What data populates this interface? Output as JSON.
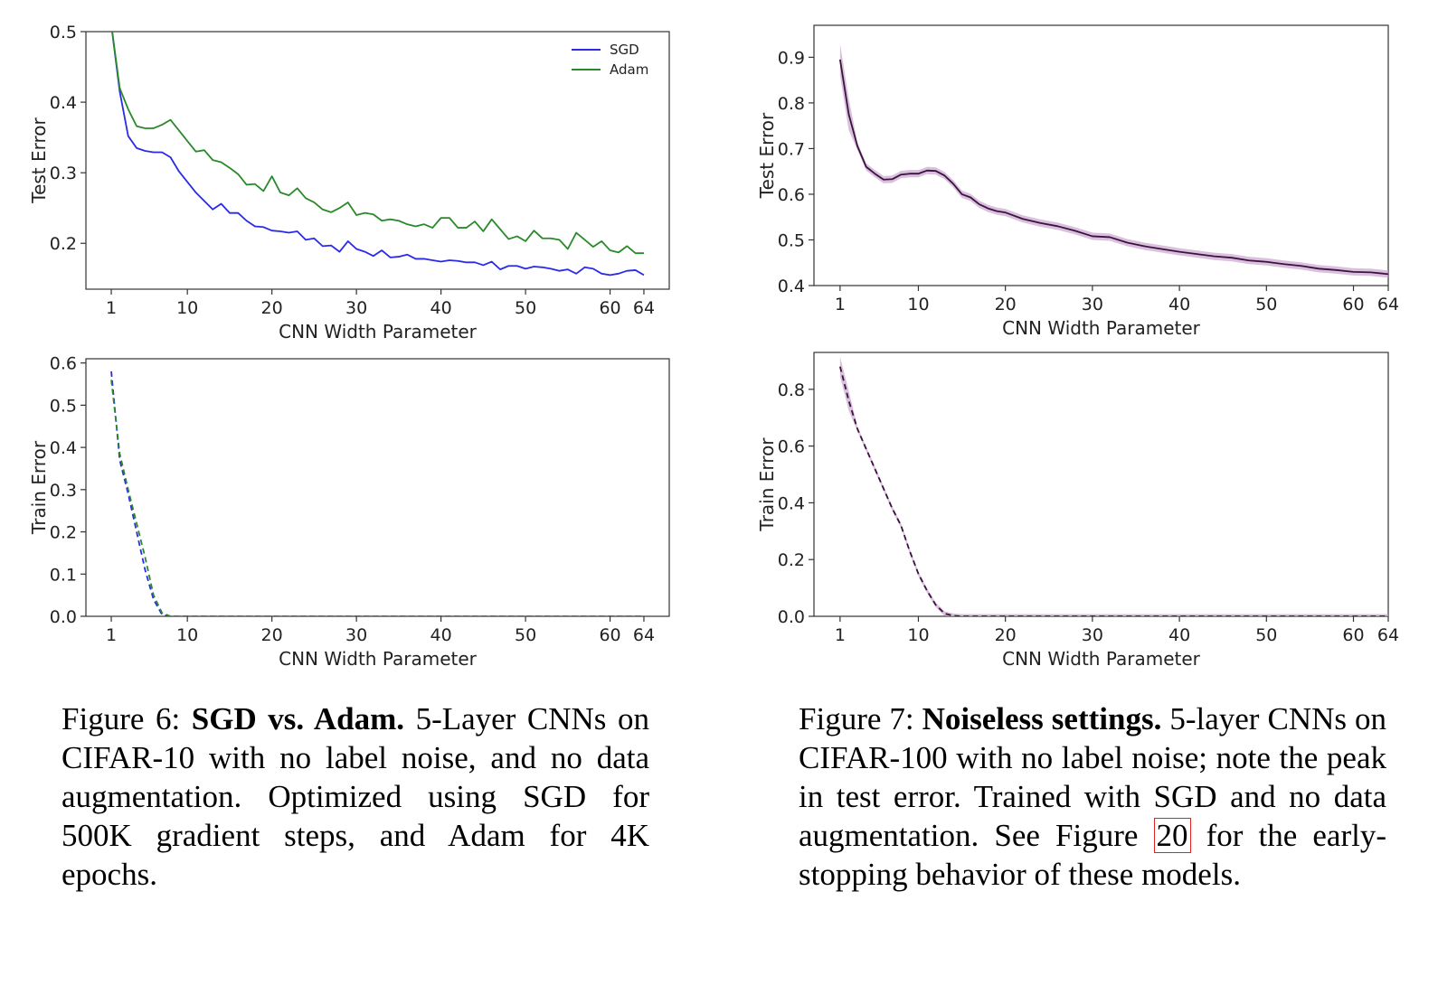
{
  "chart_data": [
    {
      "id": "fig6-test",
      "type": "line",
      "ylabel": "Test Error",
      "xlabel": "CNN Width Parameter",
      "xlim": [
        -2,
        67
      ],
      "ylim": [
        0.135,
        0.5
      ],
      "xticks": [
        1,
        10,
        20,
        30,
        40,
        50,
        60,
        64
      ],
      "yticks": [
        0.2,
        0.3,
        0.4,
        0.5
      ],
      "ytick_labels": [
        "0.2",
        "0.3",
        "0.4",
        "0.5"
      ],
      "legend": "top-right",
      "series": [
        {
          "name": "SGD",
          "color": "#2a2ae8",
          "style": "solid",
          "x": [
            1,
            2,
            3,
            4,
            5,
            6,
            7,
            8,
            9,
            10,
            11,
            12,
            13,
            14,
            15,
            16,
            17,
            18,
            19,
            20,
            21,
            22,
            23,
            24,
            25,
            26,
            27,
            28,
            29,
            30,
            31,
            32,
            33,
            34,
            35,
            36,
            37,
            38,
            39,
            40,
            41,
            42,
            43,
            44,
            45,
            46,
            47,
            48,
            49,
            50,
            51,
            52,
            53,
            54,
            55,
            56,
            57,
            58,
            59,
            60,
            61,
            62,
            63,
            64
          ],
          "y": [
            0.51,
            0.415,
            0.352,
            0.335,
            0.331,
            0.329,
            0.329,
            0.322,
            0.302,
            0.287,
            0.272,
            0.26,
            0.248,
            0.256,
            0.243,
            0.243,
            0.232,
            0.224,
            0.223,
            0.218,
            0.217,
            0.215,
            0.217,
            0.205,
            0.207,
            0.196,
            0.197,
            0.188,
            0.203,
            0.192,
            0.188,
            0.182,
            0.19,
            0.18,
            0.181,
            0.184,
            0.178,
            0.178,
            0.176,
            0.174,
            0.176,
            0.175,
            0.173,
            0.173,
            0.169,
            0.174,
            0.163,
            0.168,
            0.168,
            0.164,
            0.167,
            0.166,
            0.164,
            0.161,
            0.163,
            0.157,
            0.166,
            0.164,
            0.157,
            0.155,
            0.157,
            0.161,
            0.162,
            0.155
          ]
        },
        {
          "name": "Adam",
          "color": "#2a8a2a",
          "style": "solid",
          "x": [
            1,
            2,
            3,
            4,
            5,
            6,
            7,
            8,
            9,
            10,
            11,
            12,
            13,
            14,
            15,
            16,
            17,
            18,
            19,
            20,
            21,
            22,
            23,
            24,
            25,
            26,
            27,
            28,
            29,
            30,
            31,
            32,
            33,
            34,
            35,
            36,
            37,
            38,
            39,
            40,
            41,
            42,
            43,
            44,
            45,
            46,
            47,
            48,
            49,
            50,
            51,
            52,
            53,
            54,
            55,
            56,
            57,
            58,
            59,
            60,
            61,
            62,
            63,
            64
          ],
          "y": [
            0.51,
            0.42,
            0.39,
            0.366,
            0.363,
            0.363,
            0.368,
            0.375,
            0.36,
            0.345,
            0.33,
            0.332,
            0.318,
            0.315,
            0.307,
            0.298,
            0.283,
            0.284,
            0.274,
            0.295,
            0.272,
            0.268,
            0.278,
            0.264,
            0.258,
            0.248,
            0.244,
            0.25,
            0.258,
            0.24,
            0.243,
            0.241,
            0.232,
            0.234,
            0.232,
            0.227,
            0.224,
            0.227,
            0.222,
            0.236,
            0.236,
            0.222,
            0.222,
            0.231,
            0.217,
            0.234,
            0.22,
            0.206,
            0.21,
            0.203,
            0.218,
            0.207,
            0.207,
            0.205,
            0.192,
            0.215,
            0.205,
            0.195,
            0.203,
            0.19,
            0.187,
            0.196,
            0.186,
            0.186
          ]
        }
      ]
    },
    {
      "id": "fig6-train",
      "type": "line",
      "ylabel": "Train Error",
      "xlabel": "CNN Width Parameter",
      "xlim": [
        -2,
        67
      ],
      "ylim": [
        0,
        0.61
      ],
      "xticks": [
        1,
        10,
        20,
        30,
        40,
        50,
        60,
        64
      ],
      "yticks": [
        0.0,
        0.1,
        0.2,
        0.3,
        0.4,
        0.5,
        0.6
      ],
      "ytick_labels": [
        "0.0",
        "0.1",
        "0.2",
        "0.3",
        "0.4",
        "0.5",
        "0.6"
      ],
      "series": [
        {
          "name": "SGD",
          "color": "#2a2ae8",
          "style": "dashed",
          "x": [
            1,
            2,
            3,
            4,
            5,
            6,
            7,
            8,
            9,
            64
          ],
          "y": [
            0.58,
            0.37,
            0.29,
            0.2,
            0.11,
            0.04,
            0.004,
            0,
            0,
            0
          ]
        },
        {
          "name": "Adam",
          "color": "#2a8a2a",
          "style": "dashed",
          "x": [
            1,
            2,
            3,
            4,
            5,
            6,
            7,
            8,
            9,
            64
          ],
          "y": [
            0.56,
            0.385,
            0.3,
            0.22,
            0.14,
            0.05,
            0.008,
            0,
            0,
            0
          ]
        }
      ]
    },
    {
      "id": "fig7-test",
      "type": "line",
      "ylabel": "Test Error",
      "xlabel": "CNN Width Parameter",
      "xlim": [
        -2,
        64
      ],
      "ylim": [
        0.4,
        0.97
      ],
      "xticks": [
        1,
        10,
        20,
        30,
        40,
        50,
        60,
        64
      ],
      "yticks": [
        0.4,
        0.5,
        0.6,
        0.7,
        0.8,
        0.9
      ],
      "ytick_labels": [
        "0.4",
        "0.5",
        "0.6",
        "0.7",
        "0.8",
        "0.9"
      ],
      "series": [
        {
          "color": "#3d1240",
          "style": "solid",
          "band": "#c9a6cf",
          "x": [
            1,
            2,
            3,
            4,
            5,
            6,
            7,
            8,
            9,
            10,
            11,
            12,
            13,
            14,
            15,
            16,
            17,
            18,
            19,
            20,
            22,
            24,
            26,
            28,
            30,
            32,
            34,
            36,
            38,
            40,
            42,
            44,
            46,
            48,
            50,
            52,
            54,
            56,
            58,
            60,
            62,
            64
          ],
          "y": [
            0.895,
            0.775,
            0.705,
            0.66,
            0.645,
            0.632,
            0.633,
            0.643,
            0.645,
            0.645,
            0.652,
            0.651,
            0.641,
            0.623,
            0.6,
            0.593,
            0.578,
            0.569,
            0.563,
            0.56,
            0.546,
            0.537,
            0.53,
            0.52,
            0.508,
            0.506,
            0.494,
            0.486,
            0.48,
            0.474,
            0.469,
            0.464,
            0.461,
            0.455,
            0.452,
            0.447,
            0.443,
            0.437,
            0.434,
            0.43,
            0.429,
            0.425
          ]
        }
      ]
    },
    {
      "id": "fig7-train",
      "type": "line",
      "ylabel": "Train Error",
      "xlabel": "CNN Width Parameter",
      "xlim": [
        -2,
        64
      ],
      "ylim": [
        0,
        0.93
      ],
      "xticks": [
        1,
        10,
        20,
        30,
        40,
        50,
        60,
        64
      ],
      "yticks": [
        0.0,
        0.2,
        0.4,
        0.6,
        0.8
      ],
      "ytick_labels": [
        "0.0",
        "0.2",
        "0.4",
        "0.6",
        "0.8"
      ],
      "series": [
        {
          "color": "#3d1240",
          "style": "dashed",
          "band": "#c9a6cf",
          "x": [
            1,
            2,
            3,
            4,
            5,
            6,
            7,
            8,
            9,
            10,
            11,
            12,
            13,
            14,
            15,
            64
          ],
          "y": [
            0.88,
            0.76,
            0.66,
            0.59,
            0.52,
            0.45,
            0.38,
            0.32,
            0.23,
            0.15,
            0.09,
            0.04,
            0.01,
            0.002,
            0,
            0
          ]
        }
      ]
    }
  ],
  "captions": {
    "fig6": {
      "label": "Figure 6: ",
      "bold": "SGD vs. Adam.",
      "text": " 5-Layer CNNs on CIFAR-10 with no label noise, and no data augmentation. Optimized using SGD for 500K gradient steps, and Adam for 4K epochs."
    },
    "fig7": {
      "label": "Figure 7:  ",
      "bold": "Noiseless settings.",
      "text_a": "  5-layer CNNs on CIFAR-100 with no label noise; note the peak in test error.  Trained with SGD and no data augmentation. See Figure ",
      "ref": "20",
      "text_b": " for the early-stopping behavior of these models."
    }
  }
}
